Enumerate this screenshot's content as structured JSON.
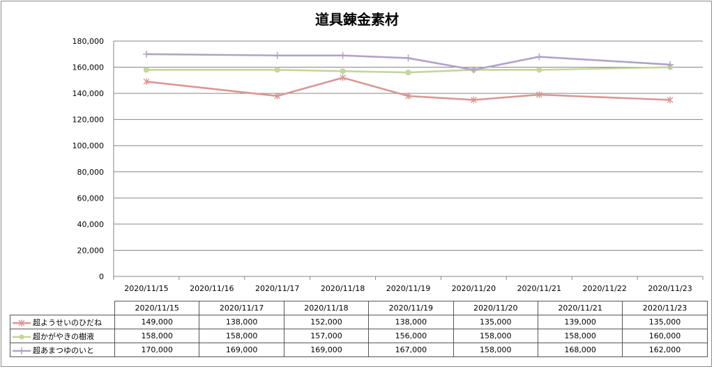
{
  "chart_data": {
    "type": "line",
    "title": "道具錬金素材",
    "categories": [
      "2020/11/15",
      "2020/11/16",
      "2020/11/17",
      "2020/11/18",
      "2020/11/19",
      "2020/11/20",
      "2020/11/21",
      "2020/11/22",
      "2020/11/23"
    ],
    "x": [
      "2020/11/15",
      "2020/11/17",
      "2020/11/18",
      "2020/11/19",
      "2020/11/20",
      "2020/11/21",
      "2020/11/23"
    ],
    "ylim": [
      0,
      180000
    ],
    "yticks": [
      "0",
      "20,000",
      "40,000",
      "60,000",
      "80,000",
      "100,000",
      "120,000",
      "140,000",
      "160,000",
      "180,000"
    ],
    "grid": true,
    "legend": "bottom-table",
    "series": [
      {
        "name": "超ようせいのひだね",
        "color": "#d99694",
        "marker": "asterisk",
        "values": [
          149000,
          138000,
          152000,
          138000,
          135000,
          139000,
          135000
        ],
        "labels": [
          "149,000",
          "138,000",
          "152,000",
          "138,000",
          "135,000",
          "139,000",
          "135,000"
        ]
      },
      {
        "name": "超かがやきの樹液",
        "color": "#c3d69b",
        "marker": "circle",
        "values": [
          158000,
          158000,
          157000,
          156000,
          158000,
          158000,
          160000
        ],
        "labels": [
          "158,000",
          "158,000",
          "157,000",
          "156,000",
          "158,000",
          "158,000",
          "160,000"
        ]
      },
      {
        "name": "超あまつゆのいと",
        "color": "#b3a2c7",
        "marker": "plus",
        "values": [
          170000,
          169000,
          169000,
          167000,
          158000,
          168000,
          162000
        ],
        "labels": [
          "170,000",
          "169,000",
          "169,000",
          "167,000",
          "158,000",
          "168,000",
          "162,000"
        ]
      }
    ]
  }
}
